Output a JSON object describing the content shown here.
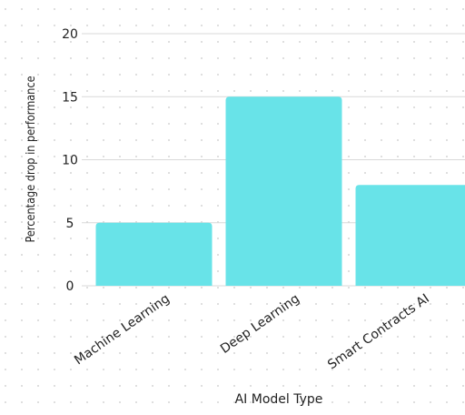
{
  "chart_data": {
    "type": "bar",
    "title": "",
    "xlabel": "AI Model Type",
    "ylabel": "Percentage drop in performance",
    "categories": [
      "Machine Learning",
      "Deep Learning",
      "Smart Contracts AI"
    ],
    "values": [
      5,
      15,
      8
    ],
    "ylim": [
      0,
      20
    ],
    "yticks": [
      0,
      5,
      10,
      15,
      20
    ],
    "grid": true,
    "legend": "none",
    "bar_color": "#68e3e8",
    "grid_color": "#d9d9d9",
    "dot_color": "#c8c8c8"
  }
}
